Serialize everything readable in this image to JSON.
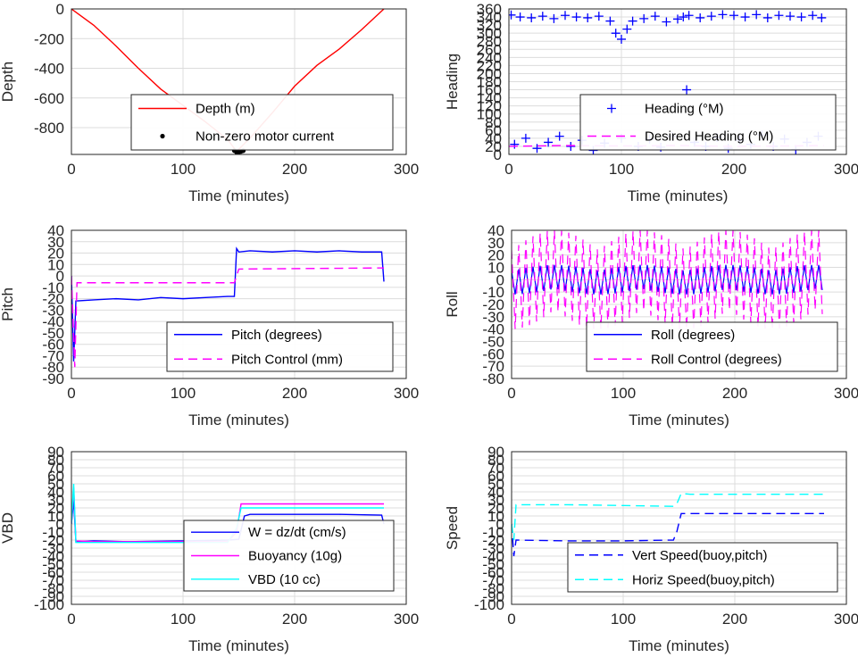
{
  "chart_data": [
    {
      "type": "line",
      "xlabel": "Time (minutes)",
      "ylabel": "Depth",
      "xlim": [
        0,
        300
      ],
      "ylim": [
        -980,
        0
      ],
      "xticks": [
        "0",
        "100",
        "200",
        "300"
      ],
      "yticks": [
        "0",
        "-200",
        "-400",
        "-600",
        "-800"
      ],
      "ytick_values": [
        0,
        -200,
        -400,
        -600,
        -800
      ],
      "grid": true,
      "legend": "bottom-right",
      "series": [
        {
          "name": "Depth (m)",
          "style": "solid",
          "color": "#ff0000",
          "x": [
            0,
            20,
            40,
            60,
            80,
            100,
            120,
            140,
            148,
            160,
            180,
            200,
            220,
            240,
            260,
            280
          ],
          "y": [
            0,
            -110,
            -250,
            -400,
            -540,
            -650,
            -760,
            -880,
            -960,
            -870,
            -700,
            -520,
            -380,
            -270,
            -140,
            0
          ]
        },
        {
          "name": "Non-zero motor current",
          "style": "dot",
          "color": "#000000",
          "x": [
            146,
            148,
            150,
            152,
            154
          ],
          "y": [
            -955,
            -965,
            -965,
            -960,
            -955
          ]
        }
      ]
    },
    {
      "type": "scatter",
      "xlabel": "Time (minutes)",
      "ylabel": "Heading",
      "xlim": [
        0,
        300
      ],
      "ylim": [
        0,
        360
      ],
      "xticks": [
        "0",
        "100",
        "200",
        "300"
      ],
      "yticks": [
        "0",
        "20",
        "40",
        "60",
        "80",
        "100",
        "120",
        "140",
        "160",
        "180",
        "200",
        "220",
        "240",
        "260",
        "280",
        "300",
        "320",
        "340",
        "360"
      ],
      "ytick_values": [
        0,
        20,
        40,
        60,
        80,
        100,
        120,
        140,
        160,
        180,
        200,
        220,
        240,
        260,
        280,
        300,
        320,
        340,
        360
      ],
      "grid": true,
      "legend": "bottom-right",
      "series": [
        {
          "name": "Heading (°M)",
          "style": "plus",
          "color": "#0000ff",
          "x": [
            2,
            10,
            20,
            30,
            40,
            50,
            60,
            70,
            80,
            90,
            95,
            100,
            105,
            110,
            120,
            130,
            140,
            150,
            155,
            160,
            170,
            180,
            190,
            200,
            210,
            220,
            230,
            240,
            250,
            260,
            270,
            278,
            5,
            15,
            25,
            35,
            45,
            55,
            65,
            75,
            85,
            100,
            115,
            125,
            135,
            145,
            158,
            165,
            175,
            185,
            195,
            205,
            215,
            225,
            235,
            245,
            255,
            265,
            275
          ],
          "y": [
            345,
            340,
            338,
            342,
            336,
            344,
            340,
            338,
            342,
            330,
            300,
            285,
            310,
            330,
            336,
            342,
            328,
            335,
            340,
            344,
            338,
            342,
            346,
            344,
            340,
            346,
            338,
            344,
            342,
            340,
            344,
            338,
            25,
            40,
            15,
            30,
            45,
            20,
            35,
            10,
            28,
            40,
            20,
            38,
            18,
            45,
            160,
            30,
            20,
            42,
            15,
            35,
            25,
            48,
            20,
            38,
            12,
            30,
            45
          ]
        },
        {
          "name": "Desired Heading (°M)",
          "style": "dash",
          "color": "#ff00ff",
          "x": [
            0,
            50,
            100,
            150,
            200,
            250,
            280
          ],
          "y": [
            20,
            22,
            21,
            22,
            20,
            21,
            22
          ]
        }
      ]
    },
    {
      "type": "line",
      "xlabel": "Time (minutes)",
      "ylabel": "Pitch",
      "xlim": [
        0,
        300
      ],
      "ylim": [
        -90,
        40
      ],
      "xticks": [
        "0",
        "100",
        "200",
        "300"
      ],
      "yticks": [
        "40",
        "30",
        "20",
        "10",
        "0",
        "-10",
        "-20",
        "-30",
        "-40",
        "-50",
        "-60",
        "-70",
        "-80",
        "-90"
      ],
      "ytick_values": [
        40,
        30,
        20,
        10,
        0,
        -10,
        -20,
        -30,
        -40,
        -50,
        -60,
        -70,
        -80,
        -90
      ],
      "grid": true,
      "legend": "bottom-right",
      "series": [
        {
          "name": "Pitch (degrees)",
          "style": "solid",
          "color": "#0000ff",
          "x": [
            0,
            2,
            4,
            20,
            40,
            60,
            80,
            100,
            120,
            140,
            146,
            148,
            150,
            160,
            180,
            200,
            220,
            240,
            260,
            278,
            280
          ],
          "y": [
            0,
            -75,
            -22,
            -21,
            -20,
            -21,
            -19,
            -20,
            -19,
            -18,
            -18,
            24,
            21,
            22,
            21,
            22,
            21,
            22,
            21,
            21,
            -5
          ]
        },
        {
          "name": "Pitch Control (mm)",
          "style": "dash",
          "color": "#ff00ff",
          "x": [
            0,
            3,
            5,
            140,
            146,
            150,
            280
          ],
          "y": [
            0,
            -80,
            -6,
            -6,
            -6,
            6,
            7
          ]
        }
      ]
    },
    {
      "type": "line",
      "xlabel": "Time (minutes)",
      "ylabel": "Roll",
      "xlim": [
        0,
        300
      ],
      "ylim": [
        -80,
        40
      ],
      "xticks": [
        "0",
        "100",
        "200",
        "300"
      ],
      "yticks": [
        "40",
        "30",
        "20",
        "10",
        "0",
        "-10",
        "-20",
        "-30",
        "-40",
        "-50",
        "-60",
        "-70",
        "-80"
      ],
      "ytick_values": [
        40,
        30,
        20,
        10,
        0,
        -10,
        -20,
        -30,
        -40,
        -50,
        -60,
        -70,
        -80
      ],
      "grid": true,
      "legend": "bottom-right",
      "series": [
        {
          "name": "Roll (degrees)",
          "style": "solid",
          "color": "#0000ff",
          "oscillation": 12,
          "x": [
            0,
            280
          ],
          "y": [
            0,
            0
          ]
        },
        {
          "name": "Roll Control (degrees)",
          "style": "dash",
          "color": "#ff00ff",
          "oscillation": 40,
          "x": [
            0,
            280
          ],
          "y": [
            0,
            0
          ]
        }
      ]
    },
    {
      "type": "line",
      "xlabel": "Time (minutes)",
      "ylabel": "VBD",
      "xlim": [
        0,
        300
      ],
      "ylim": [
        -100,
        90
      ],
      "xticks": [
        "0",
        "100",
        "200",
        "300"
      ],
      "yticks": [
        "90",
        "80",
        "70",
        "60",
        "50",
        "40",
        "30",
        "20",
        "10",
        "0",
        "-10",
        "-20",
        "-30",
        "-40",
        "-50",
        "-60",
        "-70",
        "-80",
        "-90",
        "-100"
      ],
      "ytick_values": [
        90,
        80,
        70,
        60,
        50,
        40,
        30,
        20,
        10,
        0,
        -10,
        -20,
        -30,
        -40,
        -50,
        -60,
        -70,
        -80,
        -90,
        -100
      ],
      "grid": true,
      "legend": "bottom-right",
      "series": [
        {
          "name": "W = dz/dt (cm/s)",
          "style": "solid",
          "color": "#0000ff",
          "x": [
            0,
            2,
            4,
            20,
            50,
            100,
            140,
            150,
            155,
            160,
            200,
            240,
            278,
            280
          ],
          "y": [
            0,
            30,
            -22,
            -21,
            -22,
            -21,
            -20,
            -19,
            10,
            12,
            12,
            12,
            11,
            0
          ]
        },
        {
          "name": "Buoyancy (10g)",
          "style": "solid",
          "color": "#ff00ff",
          "x": [
            0,
            2,
            4,
            20,
            100,
            140,
            148,
            152,
            280
          ],
          "y": [
            0,
            45,
            -21,
            -22,
            -22,
            -22,
            -10,
            25,
            25
          ]
        },
        {
          "name": "VBD (10 cc)",
          "style": "solid",
          "color": "#00ffff",
          "x": [
            0,
            2,
            4,
            20,
            100,
            140,
            148,
            152,
            280
          ],
          "y": [
            0,
            50,
            -23,
            -23,
            -23,
            -23,
            -5,
            20,
            20
          ]
        }
      ]
    },
    {
      "type": "line",
      "xlabel": "Time (minutes)",
      "ylabel": "Speed",
      "xlim": [
        0,
        300
      ],
      "ylim": [
        -100,
        90
      ],
      "xticks": [
        "0",
        "100",
        "200",
        "300"
      ],
      "yticks": [
        "90",
        "80",
        "70",
        "60",
        "50",
        "40",
        "30",
        "20",
        "10",
        "0",
        "-10",
        "-20",
        "-30",
        "-40",
        "-50",
        "-60",
        "-70",
        "-80",
        "-90",
        "-100"
      ],
      "ytick_values": [
        90,
        80,
        70,
        60,
        50,
        40,
        30,
        20,
        10,
        0,
        -10,
        -20,
        -30,
        -40,
        -50,
        -60,
        -70,
        -80,
        -90,
        -100
      ],
      "grid": true,
      "legend": "bottom-right",
      "series": [
        {
          "name": "Vert Speed(buoy,pitch)",
          "style": "dash",
          "color": "#0000ff",
          "x": [
            0,
            2,
            4,
            50,
            100,
            145,
            148,
            152,
            160,
            280
          ],
          "y": [
            0,
            -40,
            -20,
            -21,
            -21,
            -20,
            -10,
            13,
            13,
            13
          ]
        },
        {
          "name": "Horiz Speed(buoy,pitch)",
          "style": "dash",
          "color": "#00ffff",
          "x": [
            0,
            2,
            4,
            50,
            100,
            145,
            148,
            152,
            160,
            280
          ],
          "y": [
            0,
            -20,
            24,
            24,
            23,
            22,
            25,
            38,
            37,
            37
          ]
        }
      ]
    }
  ]
}
